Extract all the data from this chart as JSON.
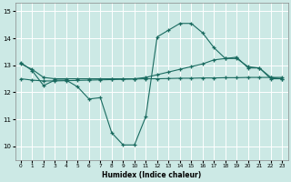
{
  "xlabel": "Humidex (Indice chaleur)",
  "bg_color": "#cce9e5",
  "line_color": "#1a6b60",
  "grid_color": "#ffffff",
  "xlim": [
    -0.5,
    23.5
  ],
  "ylim": [
    9.5,
    15.3
  ],
  "yticks": [
    10,
    11,
    12,
    13,
    14,
    15
  ],
  "xticks": [
    0,
    1,
    2,
    3,
    4,
    5,
    6,
    7,
    8,
    9,
    10,
    11,
    12,
    13,
    14,
    15,
    16,
    17,
    18,
    19,
    20,
    21,
    22,
    23
  ],
  "line1_x": [
    0,
    1,
    2,
    3,
    4,
    5,
    6,
    7,
    8,
    9,
    10,
    11,
    12,
    13,
    14,
    15,
    16,
    17,
    18,
    19,
    20,
    21,
    22,
    23
  ],
  "line1_y": [
    13.1,
    12.8,
    12.25,
    12.45,
    12.45,
    12.2,
    11.75,
    11.8,
    10.5,
    10.05,
    10.05,
    11.1,
    14.05,
    14.3,
    14.55,
    14.55,
    14.2,
    13.65,
    13.25,
    13.3,
    12.9,
    12.9,
    12.5,
    12.5
  ],
  "line2_x": [
    0,
    1,
    2,
    3,
    4,
    5,
    6,
    7,
    8,
    9,
    10,
    11,
    12,
    13,
    14,
    15,
    16,
    17,
    18,
    19,
    20,
    21,
    22,
    23
  ],
  "line2_y": [
    12.5,
    12.45,
    12.42,
    12.42,
    12.43,
    12.44,
    12.45,
    12.46,
    12.47,
    12.48,
    12.49,
    12.5,
    12.5,
    12.51,
    12.52,
    12.52,
    12.53,
    12.53,
    12.54,
    12.54,
    12.55,
    12.55,
    12.55,
    12.55
  ],
  "line3_x": [
    0,
    1,
    2,
    3,
    4,
    5,
    6,
    7,
    8,
    9,
    10,
    11,
    12,
    13,
    14,
    15,
    16,
    17,
    18,
    19,
    20,
    21,
    22,
    23
  ],
  "line3_y": [
    13.05,
    12.85,
    12.55,
    12.5,
    12.5,
    12.5,
    12.5,
    12.5,
    12.5,
    12.5,
    12.5,
    12.55,
    12.65,
    12.75,
    12.85,
    12.95,
    13.05,
    13.2,
    13.25,
    13.25,
    12.95,
    12.9,
    12.55,
    12.5
  ]
}
